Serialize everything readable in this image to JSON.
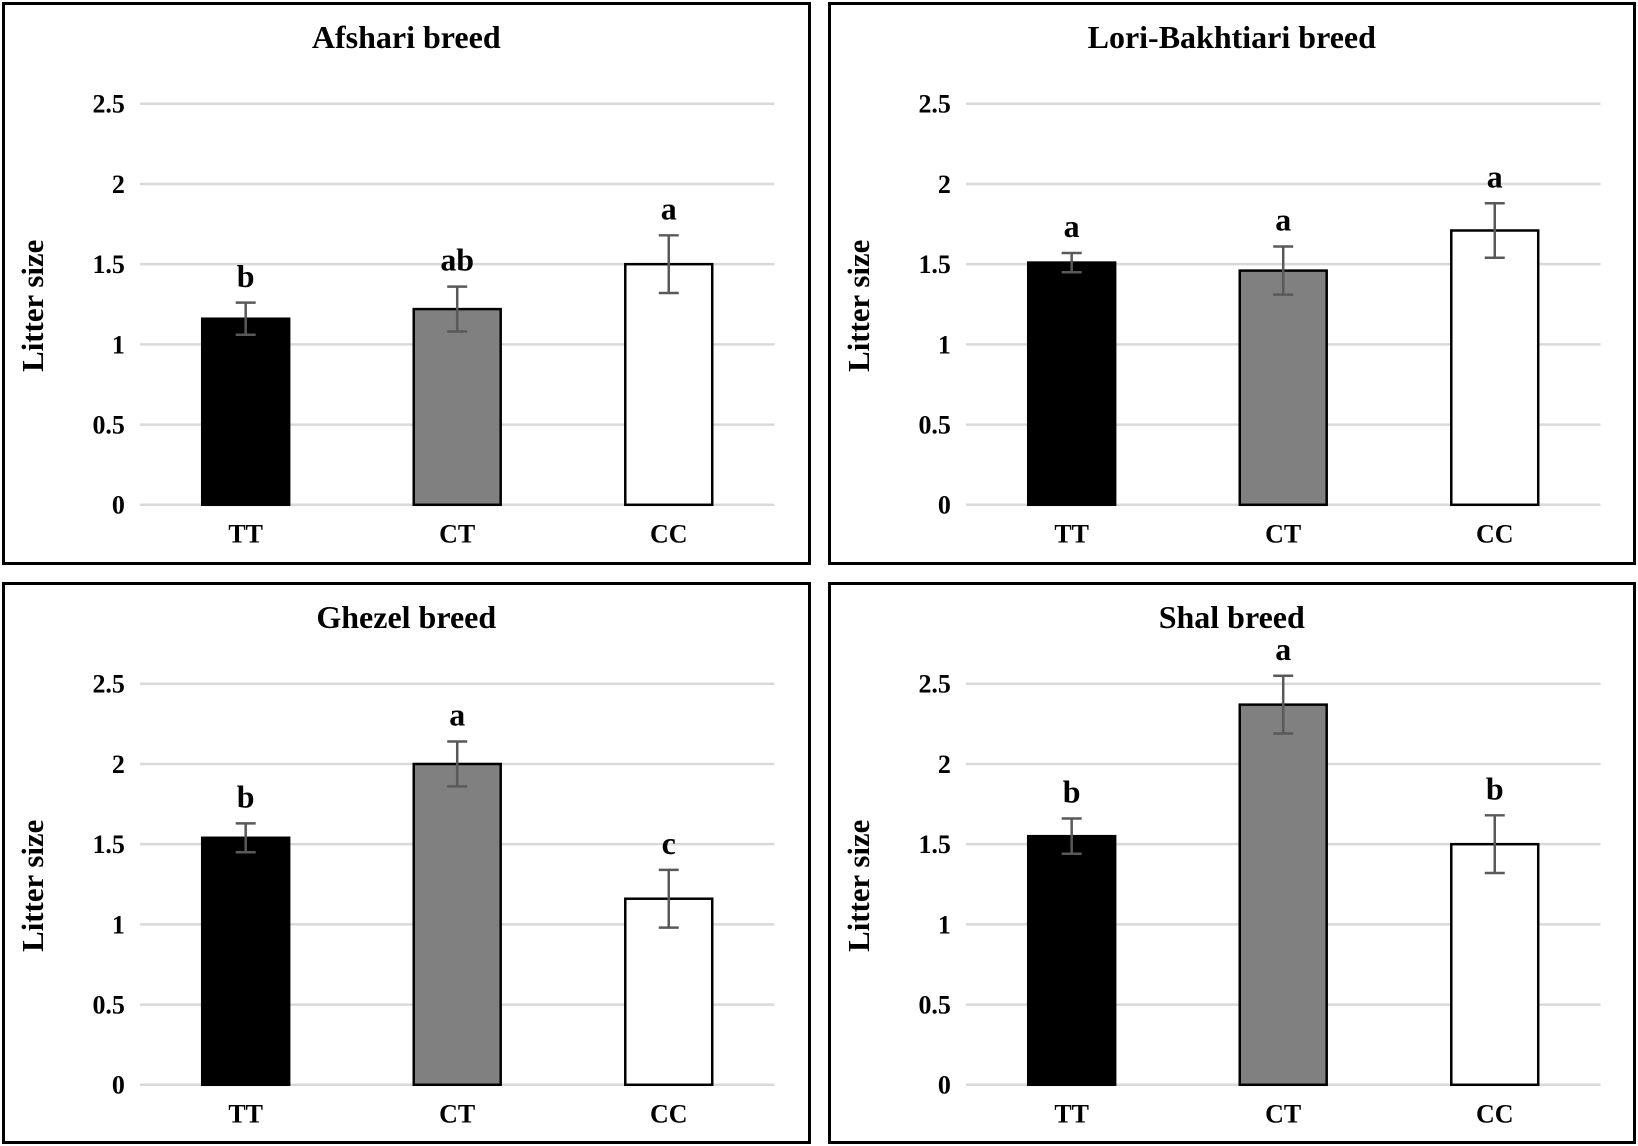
{
  "style": {
    "background": "#ffffff",
    "text_color": "#000000",
    "gridline_color": "#d9d9d9",
    "error_bar_color": "#595959",
    "bar_stroke_color": "#000000",
    "bar_fills": [
      "#000000",
      "#808080",
      "#ffffff"
    ]
  },
  "chart_data": [
    {
      "type": "bar",
      "title": "Afshari breed",
      "ylabel": "Litter size",
      "xlabel": "",
      "categories": [
        "TT",
        "CT",
        "CC"
      ],
      "values": [
        1.16,
        1.22,
        1.5
      ],
      "errors": [
        0.1,
        0.14,
        0.18
      ],
      "sig_letters": [
        "b",
        "ab",
        "a"
      ],
      "ylim": [
        0,
        2.5
      ],
      "ytick_step": 0.5,
      "y_ticks": [
        "0",
        "0.5",
        "1",
        "1.5",
        "2",
        "2.5"
      ],
      "grid": true,
      "legend": "none",
      "bar_fills": [
        "#000000",
        "#808080",
        "#ffffff"
      ]
    },
    {
      "type": "bar",
      "title": "Lori-Bakhtiari breed",
      "ylabel": "Litter size",
      "xlabel": "",
      "categories": [
        "TT",
        "CT",
        "CC"
      ],
      "values": [
        1.51,
        1.46,
        1.71
      ],
      "errors": [
        0.06,
        0.15,
        0.17
      ],
      "sig_letters": [
        "a",
        "a",
        "a"
      ],
      "ylim": [
        0,
        2.5
      ],
      "ytick_step": 0.5,
      "y_ticks": [
        "0",
        "0.5",
        "1",
        "1.5",
        "2",
        "2.5"
      ],
      "grid": true,
      "legend": "none",
      "bar_fills": [
        "#000000",
        "#808080",
        "#ffffff"
      ]
    },
    {
      "type": "bar",
      "title": "Ghezel breed",
      "ylabel": "Litter size",
      "xlabel": "",
      "categories": [
        "TT",
        "CT",
        "CC"
      ],
      "values": [
        1.54,
        2.0,
        1.16
      ],
      "errors": [
        0.09,
        0.14,
        0.18
      ],
      "sig_letters": [
        "b",
        "a",
        "c"
      ],
      "ylim": [
        0,
        2.5
      ],
      "ytick_step": 0.5,
      "y_ticks": [
        "0",
        "0.5",
        "1",
        "1.5",
        "2",
        "2.5"
      ],
      "grid": true,
      "legend": "none",
      "bar_fills": [
        "#000000",
        "#808080",
        "#ffffff"
      ]
    },
    {
      "type": "bar",
      "title": "Shal breed",
      "ylabel": "Litter size",
      "xlabel": "",
      "categories": [
        "TT",
        "CT",
        "CC"
      ],
      "values": [
        1.55,
        2.37,
        1.5
      ],
      "errors": [
        0.11,
        0.18,
        0.18
      ],
      "sig_letters": [
        "b",
        "a",
        "b"
      ],
      "ylim": [
        0,
        2.5
      ],
      "ytick_step": 0.5,
      "y_ticks": [
        "0",
        "0.5",
        "1",
        "1.5",
        "2",
        "2.5"
      ],
      "grid": true,
      "legend": "none",
      "bar_fills": [
        "#000000",
        "#808080",
        "#ffffff"
      ]
    }
  ]
}
